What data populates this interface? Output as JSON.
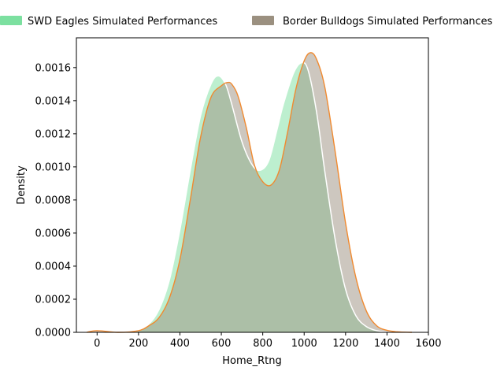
{
  "chart_data": {
    "type": "area",
    "xlabel": "Home_Rtng",
    "ylabel": "Density",
    "xlim": [
      -100,
      1600
    ],
    "ylim": [
      0,
      0.00178
    ],
    "x_ticks": [
      "0",
      "200",
      "400",
      "600",
      "800",
      "1000",
      "1200",
      "1400",
      "1600"
    ],
    "y_ticks": [
      "0.0000",
      "0.0002",
      "0.0004",
      "0.0006",
      "0.0008",
      "0.0010",
      "0.0012",
      "0.0014",
      "0.0016"
    ],
    "grid": false,
    "legend_position": "top",
    "series": [
      {
        "name": "SWD Eagles Simulated Performances",
        "fill_color": "#7ce0a0",
        "line_color": "#ffffff",
        "x": [
          -60,
          0,
          100,
          200,
          250,
          300,
          350,
          400,
          450,
          500,
          550,
          585,
          620,
          650,
          700,
          750,
          790,
          830,
          870,
          900,
          950,
          990,
          1020,
          1060,
          1100,
          1150,
          1200,
          1250,
          1300,
          1350,
          1400,
          1450
        ],
        "y": [
          0,
          0,
          0,
          1e-05,
          5e-05,
          0.00014,
          0.00032,
          0.00062,
          0.00098,
          0.00131,
          0.0015,
          0.00155,
          0.0015,
          0.00138,
          0.00115,
          0.00101,
          0.00098,
          0.00104,
          0.00123,
          0.00138,
          0.00157,
          0.00163,
          0.00158,
          0.00133,
          0.00097,
          0.00056,
          0.00026,
          0.0001,
          3.5e-05,
          1e-05,
          3e-06,
          0
        ]
      },
      {
        "name": "Border Bulldogs Simulated Performances",
        "fill_color": "#9b9080",
        "line_color": "#f08a30",
        "x": [
          -50,
          0,
          100,
          200,
          250,
          300,
          350,
          400,
          450,
          500,
          550,
          600,
          630,
          650,
          680,
          720,
          760,
          800,
          840,
          880,
          920,
          960,
          1000,
          1030,
          1060,
          1100,
          1150,
          1200,
          1250,
          1300,
          1350,
          1400,
          1450,
          1520
        ],
        "y": [
          0,
          1e-05,
          0,
          1e-05,
          4e-05,
          9e-05,
          0.00021,
          0.00044,
          0.0008,
          0.00118,
          0.00142,
          0.00149,
          0.00151,
          0.0015,
          0.00143,
          0.00124,
          0.00101,
          0.00091,
          0.00089,
          0.00098,
          0.00121,
          0.00147,
          0.00164,
          0.00169,
          0.00165,
          0.00148,
          0.00109,
          0.00066,
          0.00033,
          0.00013,
          4e-05,
          1.2e-05,
          3e-06,
          0
        ]
      }
    ]
  }
}
